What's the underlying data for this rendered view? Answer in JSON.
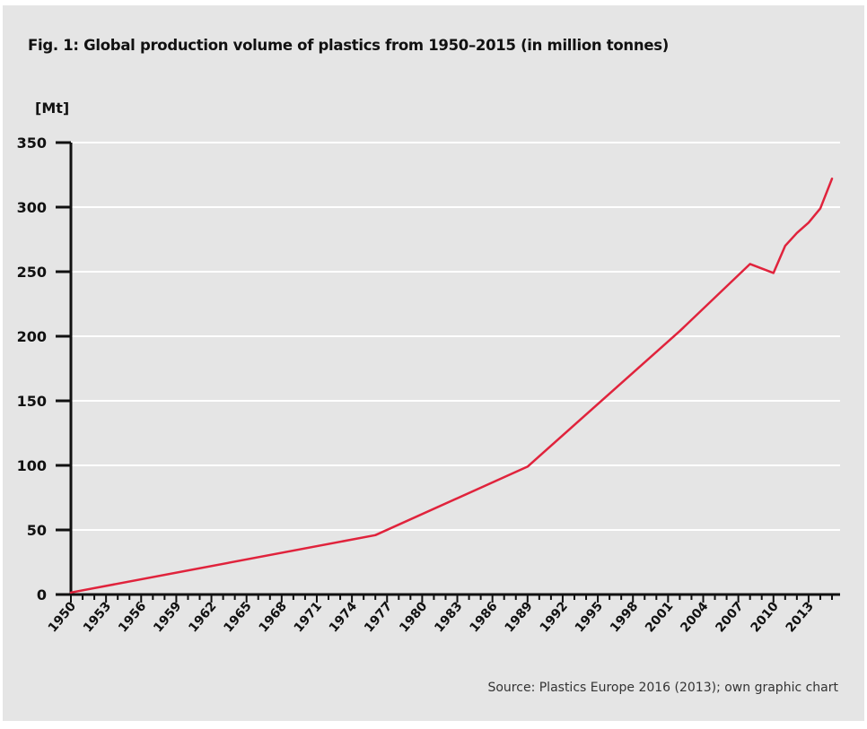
{
  "title": "Fig. 1: Global production volume of plastics from 1950–2015 (in million tonnes)",
  "source": "Source: Plastics Europe 2016 (2013); own graphic chart",
  "chart_data": {
    "type": "line",
    "title": "Fig. 1: Global production volume of plastics from 1950–2015 (in million tonnes)",
    "ylabel": "[Mt]",
    "xlabel": "",
    "ylim": [
      0,
      350
    ],
    "yticks": [
      0,
      50,
      100,
      150,
      200,
      250,
      300,
      350
    ],
    "xlim": [
      1950,
      2015
    ],
    "xticks": [
      "1950",
      "1953",
      "1956",
      "1959",
      "1962",
      "1965",
      "1968",
      "1971",
      "1974",
      "1977",
      "1980",
      "1983",
      "1986",
      "1989",
      "1992",
      "1995",
      "1998",
      "2001",
      "2004",
      "2007",
      "2010",
      "2013"
    ],
    "grid": true,
    "line_color": "#e0233c",
    "series": [
      {
        "x": [
          1950,
          1976,
          1989,
          2002,
          2008,
          2010,
          2011,
          2012,
          2013,
          2014,
          2015
        ],
        "values": [
          1.5,
          46,
          99,
          204,
          256,
          249,
          270,
          280,
          288,
          299,
          322
        ]
      }
    ]
  }
}
